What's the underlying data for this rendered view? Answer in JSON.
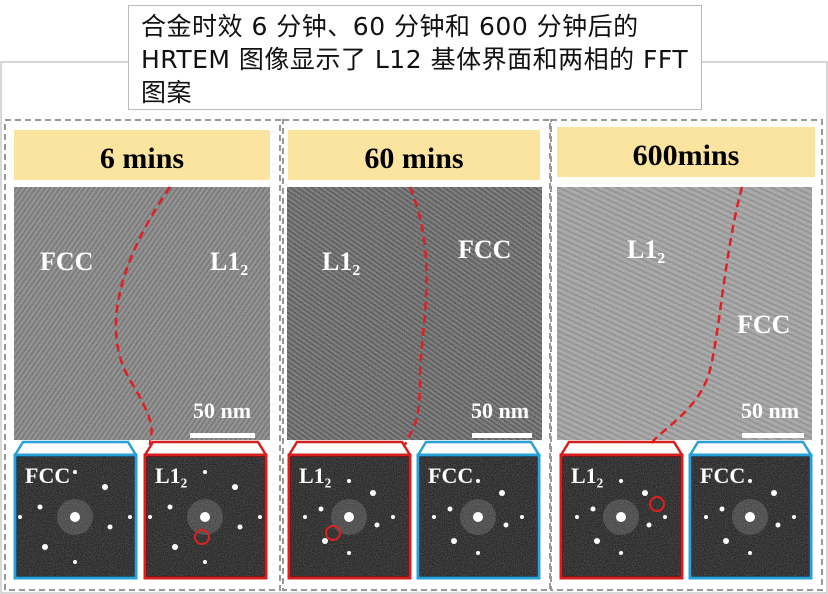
{
  "caption": "合金时效 6 分钟、60 分钟和 600 分钟后的 HRTEM 图像显示了 L12 基体界面和两相的 FFT 图案",
  "panels": [
    {
      "title": "6 mins",
      "phases": [
        "FCC",
        "L1₂"
      ],
      "scale_bar": "50 nm",
      "fft": [
        "FCC",
        "L1₂"
      ]
    },
    {
      "title": "60 mins",
      "phases": [
        "L1₂",
        "FCC"
      ],
      "scale_bar": "50 nm",
      "fft": [
        "L1₂",
        "FCC"
      ]
    },
    {
      "title": "600mins",
      "phases": [
        "L1₂",
        "FCC"
      ],
      "scale_bar": "50 nm",
      "fft": [
        "L1₂",
        "FCC"
      ]
    }
  ]
}
